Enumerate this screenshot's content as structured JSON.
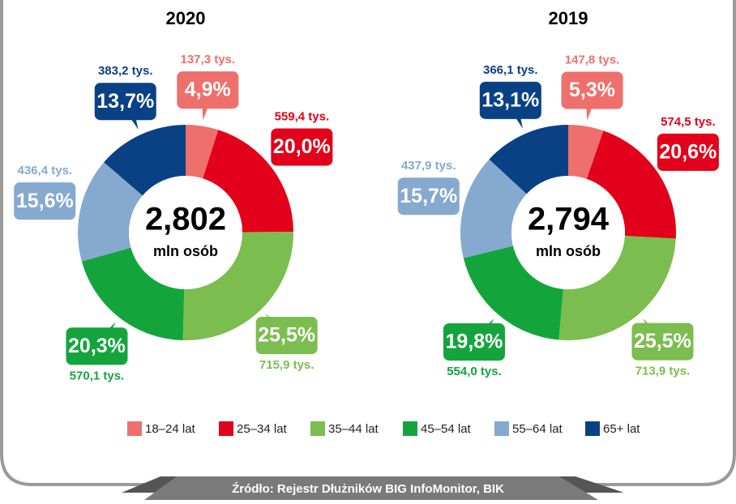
{
  "chart_data": [
    {
      "type": "donut",
      "title": "2020",
      "center_value": "2,802",
      "center_label": "mln osób",
      "categories": [
        "18–24 lat",
        "25–34 lat",
        "35–44 lat",
        "45–54 lat",
        "55–64 lat",
        "65+ lat"
      ],
      "colors": [
        "#ef6f6c",
        "#e2001a",
        "#7cbd4f",
        "#13a53c",
        "#86a9cf",
        "#0a4185"
      ],
      "values": [
        4.9,
        20.0,
        25.5,
        20.3,
        15.6,
        13.7
      ],
      "value_labels": [
        "4,9%",
        "20,0%",
        "25,5%",
        "20,3%",
        "15,6%",
        "13,7%"
      ],
      "counts": [
        137.3,
        559.4,
        715.9,
        570.1,
        436.4,
        383.2
      ],
      "count_labels": [
        "137,3 tys.",
        "559,4 tys.",
        "715,9 tys.",
        "570,1 tys.",
        "436,4 tys.",
        "383,2 tys."
      ]
    },
    {
      "type": "donut",
      "title": "2019",
      "center_value": "2,794",
      "center_label": "mln osób",
      "categories": [
        "18–24 lat",
        "25–34 lat",
        "35–44 lat",
        "45–54 lat",
        "55–64 lat",
        "65+ lat"
      ],
      "colors": [
        "#ef6f6c",
        "#e2001a",
        "#7cbd4f",
        "#13a53c",
        "#86a9cf",
        "#0a4185"
      ],
      "values": [
        5.3,
        20.6,
        25.5,
        19.8,
        15.7,
        13.1
      ],
      "value_labels": [
        "5,3%",
        "20,6%",
        "25,5%",
        "19,8%",
        "15,7%",
        "13,1%"
      ],
      "counts": [
        147.8,
        574.5,
        713.9,
        554.0,
        437.9,
        366.1
      ],
      "count_labels": [
        "147,8 tys.",
        "574,5 tys.",
        "713,9 tys.",
        "554,0 tys.",
        "437,9 tys.",
        "366,1 tys."
      ]
    }
  ],
  "source": "Źródło: Rejestr Dłużników BIG InfoMonitor, BIK"
}
